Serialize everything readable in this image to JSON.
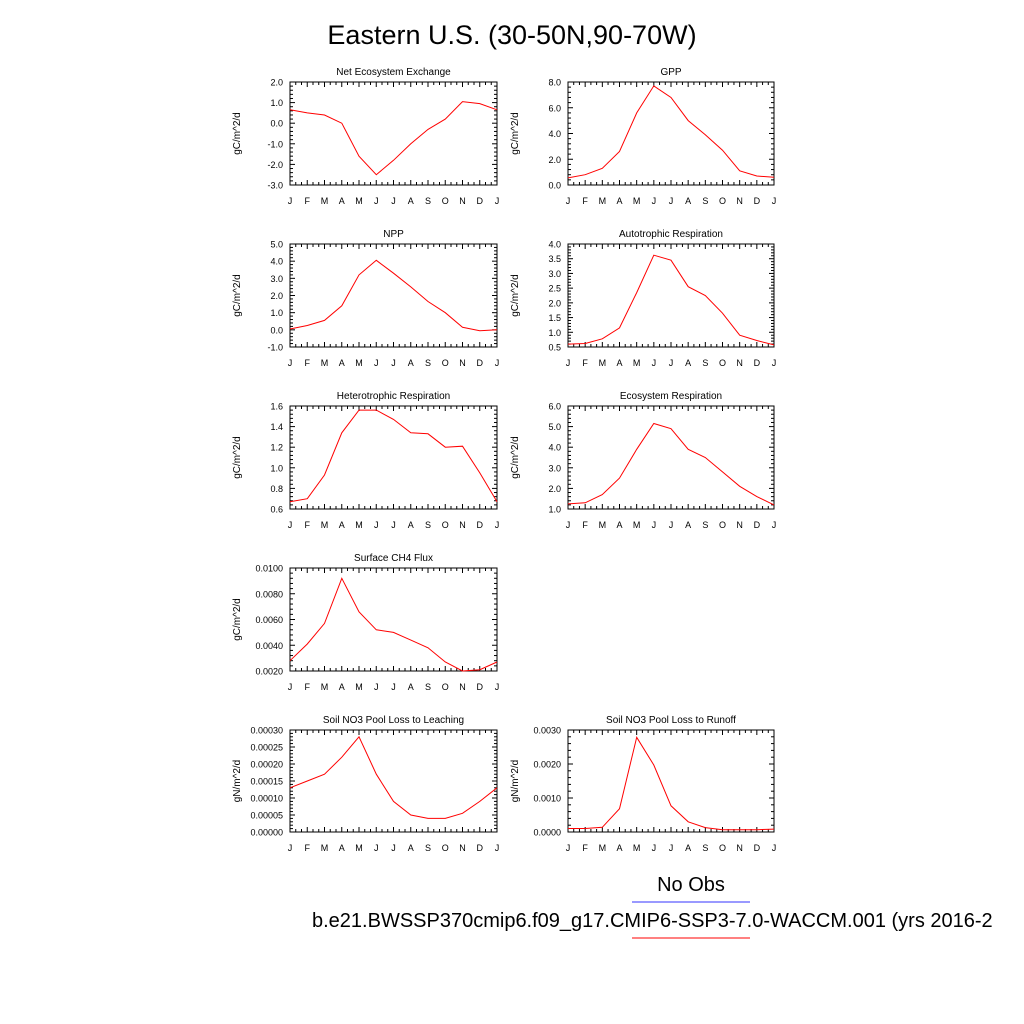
{
  "page": {
    "title": "Eastern U.S. (30-50N,90-70W)"
  },
  "legend": {
    "obs_label": "No Obs",
    "obs_color": "#3333ff",
    "model_label": "b.e21.BWSSP370cmip6.f09_g17.CMIP6-SSP3-7.0-WACCM.001 (yrs 2016-2",
    "model_color": "#ff0000"
  },
  "chart_data": [
    {
      "type": "line",
      "title": "Net Ecosystem Exchange",
      "ylabel": "gC/m^2/d",
      "categories": [
        "J",
        "F",
        "M",
        "A",
        "M",
        "J",
        "J",
        "A",
        "S",
        "O",
        "N",
        "D",
        "J"
      ],
      "ylim": [
        -3.0,
        2.0
      ],
      "yticks": [
        "2.0",
        "1.0",
        "0.0",
        "-1.0",
        "-2.0",
        "-3.0"
      ],
      "values": [
        0.65,
        0.5,
        0.4,
        0.0,
        -1.6,
        -2.5,
        -1.8,
        -1.0,
        -0.3,
        0.2,
        1.05,
        0.95,
        0.65
      ],
      "line_color": "#ff0000"
    },
    {
      "type": "line",
      "title": "GPP",
      "ylabel": "gC/m^2/d",
      "categories": [
        "J",
        "F",
        "M",
        "A",
        "M",
        "J",
        "J",
        "A",
        "S",
        "O",
        "N",
        "D",
        "J"
      ],
      "ylim": [
        0.0,
        8.0
      ],
      "yticks": [
        "8.0",
        "6.0",
        "4.0",
        "2.0",
        "0.0"
      ],
      "values": [
        0.55,
        0.8,
        1.3,
        2.6,
        5.6,
        7.7,
        6.8,
        5.0,
        3.9,
        2.7,
        1.1,
        0.7,
        0.6
      ],
      "line_color": "#ff0000"
    },
    {
      "type": "line",
      "title": "NPP",
      "ylabel": "gC/m^2/d",
      "categories": [
        "J",
        "F",
        "M",
        "A",
        "M",
        "J",
        "J",
        "A",
        "S",
        "O",
        "N",
        "D",
        "J"
      ],
      "ylim": [
        -1.0,
        5.0
      ],
      "yticks": [
        "5.0",
        "4.0",
        "3.0",
        "2.0",
        "1.0",
        "0.0",
        "-1.0"
      ],
      "values": [
        0.05,
        0.25,
        0.55,
        1.4,
        3.2,
        4.05,
        3.3,
        2.5,
        1.65,
        1.0,
        0.15,
        -0.05,
        0.0
      ],
      "line_color": "#ff0000"
    },
    {
      "type": "line",
      "title": "Autotrophic Respiration",
      "ylabel": "gC/m^2/d",
      "categories": [
        "J",
        "F",
        "M",
        "A",
        "M",
        "J",
        "J",
        "A",
        "S",
        "O",
        "N",
        "D",
        "J"
      ],
      "ylim": [
        0.5,
        4.0
      ],
      "yticks": [
        "4.0",
        "3.5",
        "3.0",
        "2.5",
        "2.0",
        "1.5",
        "1.0",
        "0.5"
      ],
      "values": [
        0.6,
        0.62,
        0.78,
        1.15,
        2.35,
        3.62,
        3.45,
        2.55,
        2.25,
        1.65,
        0.9,
        0.72,
        0.57
      ],
      "line_color": "#ff0000"
    },
    {
      "type": "line",
      "title": "Heterotrophic Respiration",
      "ylabel": "gC/m^2/d",
      "categories": [
        "J",
        "F",
        "M",
        "A",
        "M",
        "J",
        "J",
        "A",
        "S",
        "O",
        "N",
        "D",
        "J"
      ],
      "ylim": [
        0.6,
        1.6
      ],
      "yticks": [
        "1.6",
        "1.4",
        "1.2",
        "1.0",
        "0.8",
        "0.6"
      ],
      "values": [
        0.67,
        0.7,
        0.93,
        1.34,
        1.56,
        1.56,
        1.47,
        1.34,
        1.33,
        1.2,
        1.21,
        0.95,
        0.67
      ],
      "line_color": "#ff0000"
    },
    {
      "type": "line",
      "title": "Ecosystem Respiration",
      "ylabel": "gC/m^2/d",
      "categories": [
        "J",
        "F",
        "M",
        "A",
        "M",
        "J",
        "J",
        "A",
        "S",
        "O",
        "N",
        "D",
        "J"
      ],
      "ylim": [
        1.0,
        6.0
      ],
      "yticks": [
        "6.0",
        "5.0",
        "4.0",
        "3.0",
        "2.0",
        "1.0"
      ],
      "values": [
        1.25,
        1.3,
        1.7,
        2.5,
        3.9,
        5.15,
        4.9,
        3.9,
        3.5,
        2.8,
        2.1,
        1.6,
        1.2
      ],
      "line_color": "#ff0000"
    },
    {
      "type": "line",
      "title": "Surface CH4 Flux",
      "ylabel": "gC/m^2/d",
      "categories": [
        "J",
        "F",
        "M",
        "A",
        "M",
        "J",
        "J",
        "A",
        "S",
        "O",
        "N",
        "D",
        "J"
      ],
      "ylim": [
        0.002,
        0.01
      ],
      "yticks": [
        "0.0100",
        "0.0080",
        "0.0060",
        "0.0040",
        "0.0020"
      ],
      "values": [
        0.0028,
        0.0041,
        0.0057,
        0.0092,
        0.0066,
        0.0052,
        0.005,
        0.0044,
        0.0038,
        0.0027,
        0.002,
        0.0021,
        0.0027
      ],
      "line_color": "#ff0000"
    },
    {
      "type": "line",
      "title": "Soil NO3 Pool Loss to Leaching",
      "ylabel": "gN/m^2/d",
      "categories": [
        "J",
        "F",
        "M",
        "A",
        "M",
        "J",
        "J",
        "A",
        "S",
        "O",
        "N",
        "D",
        "J"
      ],
      "ylim": [
        0.0,
        0.0003
      ],
      "yticks": [
        "0.00030",
        "0.00025",
        "0.00020",
        "0.00015",
        "0.00010",
        "0.00005",
        "0.00000"
      ],
      "values": [
        0.00013,
        0.00015,
        0.00017,
        0.00022,
        0.00028,
        0.00017,
        9e-05,
        5e-05,
        4e-05,
        4e-05,
        5.5e-05,
        9e-05,
        0.00013
      ],
      "line_color": "#ff0000"
    },
    {
      "type": "line",
      "title": "Soil NO3 Pool Loss to Runoff",
      "ylabel": "gN/m^2/d",
      "categories": [
        "J",
        "F",
        "M",
        "A",
        "M",
        "J",
        "J",
        "A",
        "S",
        "O",
        "N",
        "D",
        "J"
      ],
      "ylim": [
        0.0,
        0.0035
      ],
      "yticks": [
        "0.0030",
        "0.0020",
        "0.0010",
        "0.0000"
      ],
      "values": [
        0.00012,
        0.00012,
        0.00016,
        0.0008,
        0.00325,
        0.0023,
        0.0009,
        0.00035,
        0.00015,
        8e-05,
        8e-05,
        8e-05,
        0.0001
      ],
      "line_color": "#ff0000"
    }
  ]
}
